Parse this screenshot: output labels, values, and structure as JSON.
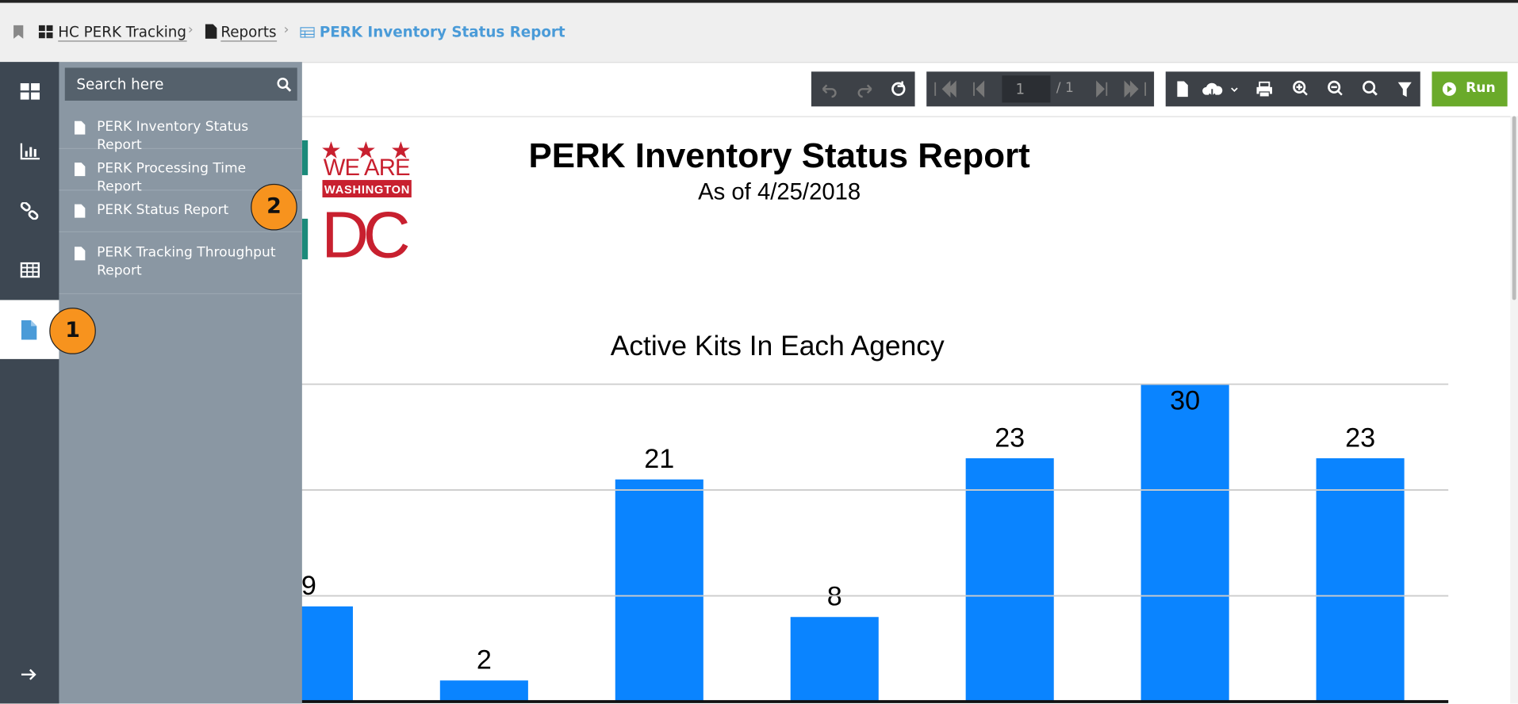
{
  "breadcrumb": [
    "HC PERK Tracking",
    "Reports",
    "PERK Inventory Status Report"
  ],
  "sidebar": {
    "search_placeholder": "Search here",
    "items": [
      "PERK Inventory Status Report",
      "PERK Processing Time Report",
      "PERK Status Report",
      "PERK Tracking Throughput Report"
    ]
  },
  "badges": [
    "1",
    "2"
  ],
  "toolbar": {
    "page": "1",
    "page_total": "/ 1",
    "run": "Run"
  },
  "report": {
    "logo": {
      "line1": "WE ARE",
      "line2": "WASHINGTON",
      "line3": "DC"
    },
    "title": "PERK Inventory Status Report",
    "subtitle": "As of 4/25/2018"
  },
  "chart_data": {
    "type": "bar",
    "title": "Active Kits In Each Agency",
    "values": [
      9,
      2,
      21,
      8,
      23,
      30,
      23
    ],
    "color": "#0a84ff",
    "ylim": [
      0,
      30
    ],
    "yticks": [
      0,
      10,
      20,
      30
    ],
    "grid": true
  }
}
